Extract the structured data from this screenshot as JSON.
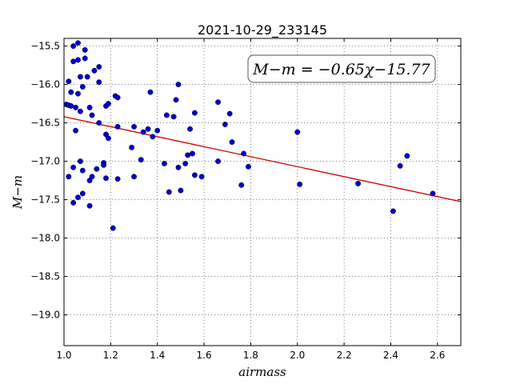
{
  "chart_data": {
    "type": "scatter",
    "title": "2021-10-29_233145",
    "xlabel": "airmass",
    "ylabel": "M−m",
    "xlim": [
      1.0,
      2.7
    ],
    "ylim": [
      -19.4,
      -15.4
    ],
    "y_inverted": true,
    "grid": true,
    "x_ticks": [
      "1.0",
      "1.2",
      "1.4",
      "1.6",
      "1.8",
      "2.0",
      "2.2",
      "2.4",
      "2.6"
    ],
    "y_ticks": [
      "−15.5",
      "−16.0",
      "−16.5",
      "−17.0",
      "−17.5",
      "−18.0",
      "−18.5",
      "−19.0"
    ],
    "annotation": "M−m = −0.65χ−15.77",
    "fit": {
      "slope": -0.65,
      "intercept": -15.77,
      "color": "#cc0000"
    },
    "marker_color": "#0000cc",
    "points": [
      [
        1.01,
        -16.26
      ],
      [
        1.02,
        -16.27
      ],
      [
        1.02,
        -17.2
      ],
      [
        1.02,
        -15.96
      ],
      [
        1.03,
        -16.1
      ],
      [
        1.03,
        -16.28
      ],
      [
        1.04,
        -15.5
      ],
      [
        1.04,
        -15.7
      ],
      [
        1.04,
        -17.54
      ],
      [
        1.04,
        -17.08
      ],
      [
        1.05,
        -16.3
      ],
      [
        1.05,
        -16.6
      ],
      [
        1.06,
        -15.46
      ],
      [
        1.06,
        -15.68
      ],
      [
        1.06,
        -16.12
      ],
      [
        1.06,
        -17.47
      ],
      [
        1.07,
        -16.35
      ],
      [
        1.07,
        -17.0
      ],
      [
        1.07,
        -15.9
      ],
      [
        1.08,
        -16.03
      ],
      [
        1.08,
        -17.42
      ],
      [
        1.08,
        -17.12
      ],
      [
        1.09,
        -15.55
      ],
      [
        1.09,
        -15.66
      ],
      [
        1.1,
        -15.9
      ],
      [
        1.11,
        -16.3
      ],
      [
        1.11,
        -17.25
      ],
      [
        1.11,
        -17.58
      ],
      [
        1.12,
        -16.4
      ],
      [
        1.12,
        -17.2
      ],
      [
        1.13,
        -15.82
      ],
      [
        1.14,
        -17.1
      ],
      [
        1.15,
        -15.77
      ],
      [
        1.15,
        -16.5
      ],
      [
        1.15,
        -15.97
      ],
      [
        1.17,
        -17.02
      ],
      [
        1.17,
        -17.05
      ],
      [
        1.18,
        -17.22
      ],
      [
        1.18,
        -16.65
      ],
      [
        1.18,
        -16.28
      ],
      [
        1.19,
        -16.25
      ],
      [
        1.19,
        -16.7
      ],
      [
        1.21,
        -17.87
      ],
      [
        1.22,
        -16.15
      ],
      [
        1.23,
        -16.17
      ],
      [
        1.23,
        -16.55
      ],
      [
        1.23,
        -17.23
      ],
      [
        1.29,
        -16.82
      ],
      [
        1.3,
        -17.2
      ],
      [
        1.3,
        -16.55
      ],
      [
        1.33,
        -16.98
      ],
      [
        1.34,
        -16.62
      ],
      [
        1.36,
        -16.58
      ],
      [
        1.37,
        -16.1
      ],
      [
        1.38,
        -16.68
      ],
      [
        1.4,
        -16.6
      ],
      [
        1.43,
        -17.03
      ],
      [
        1.44,
        -16.4
      ],
      [
        1.45,
        -17.4
      ],
      [
        1.47,
        -16.42
      ],
      [
        1.48,
        -16.2
      ],
      [
        1.49,
        -17.08
      ],
      [
        1.49,
        -16.0
      ],
      [
        1.5,
        -17.38
      ],
      [
        1.52,
        -17.03
      ],
      [
        1.53,
        -16.92
      ],
      [
        1.54,
        -16.58
      ],
      [
        1.55,
        -16.9
      ],
      [
        1.56,
        -17.18
      ],
      [
        1.56,
        -16.37
      ],
      [
        1.59,
        -17.2
      ],
      [
        1.66,
        -16.23
      ],
      [
        1.66,
        -17.0
      ],
      [
        1.69,
        -16.52
      ],
      [
        1.71,
        -16.38
      ],
      [
        1.72,
        -16.75
      ],
      [
        1.76,
        -17.31
      ],
      [
        1.77,
        -16.9
      ],
      [
        1.79,
        -17.07
      ],
      [
        2.0,
        -16.62
      ],
      [
        2.01,
        -17.3
      ],
      [
        2.26,
        -17.29
      ],
      [
        2.41,
        -17.65
      ],
      [
        2.44,
        -17.06
      ],
      [
        2.47,
        -16.93
      ],
      [
        2.58,
        -17.42
      ]
    ]
  }
}
